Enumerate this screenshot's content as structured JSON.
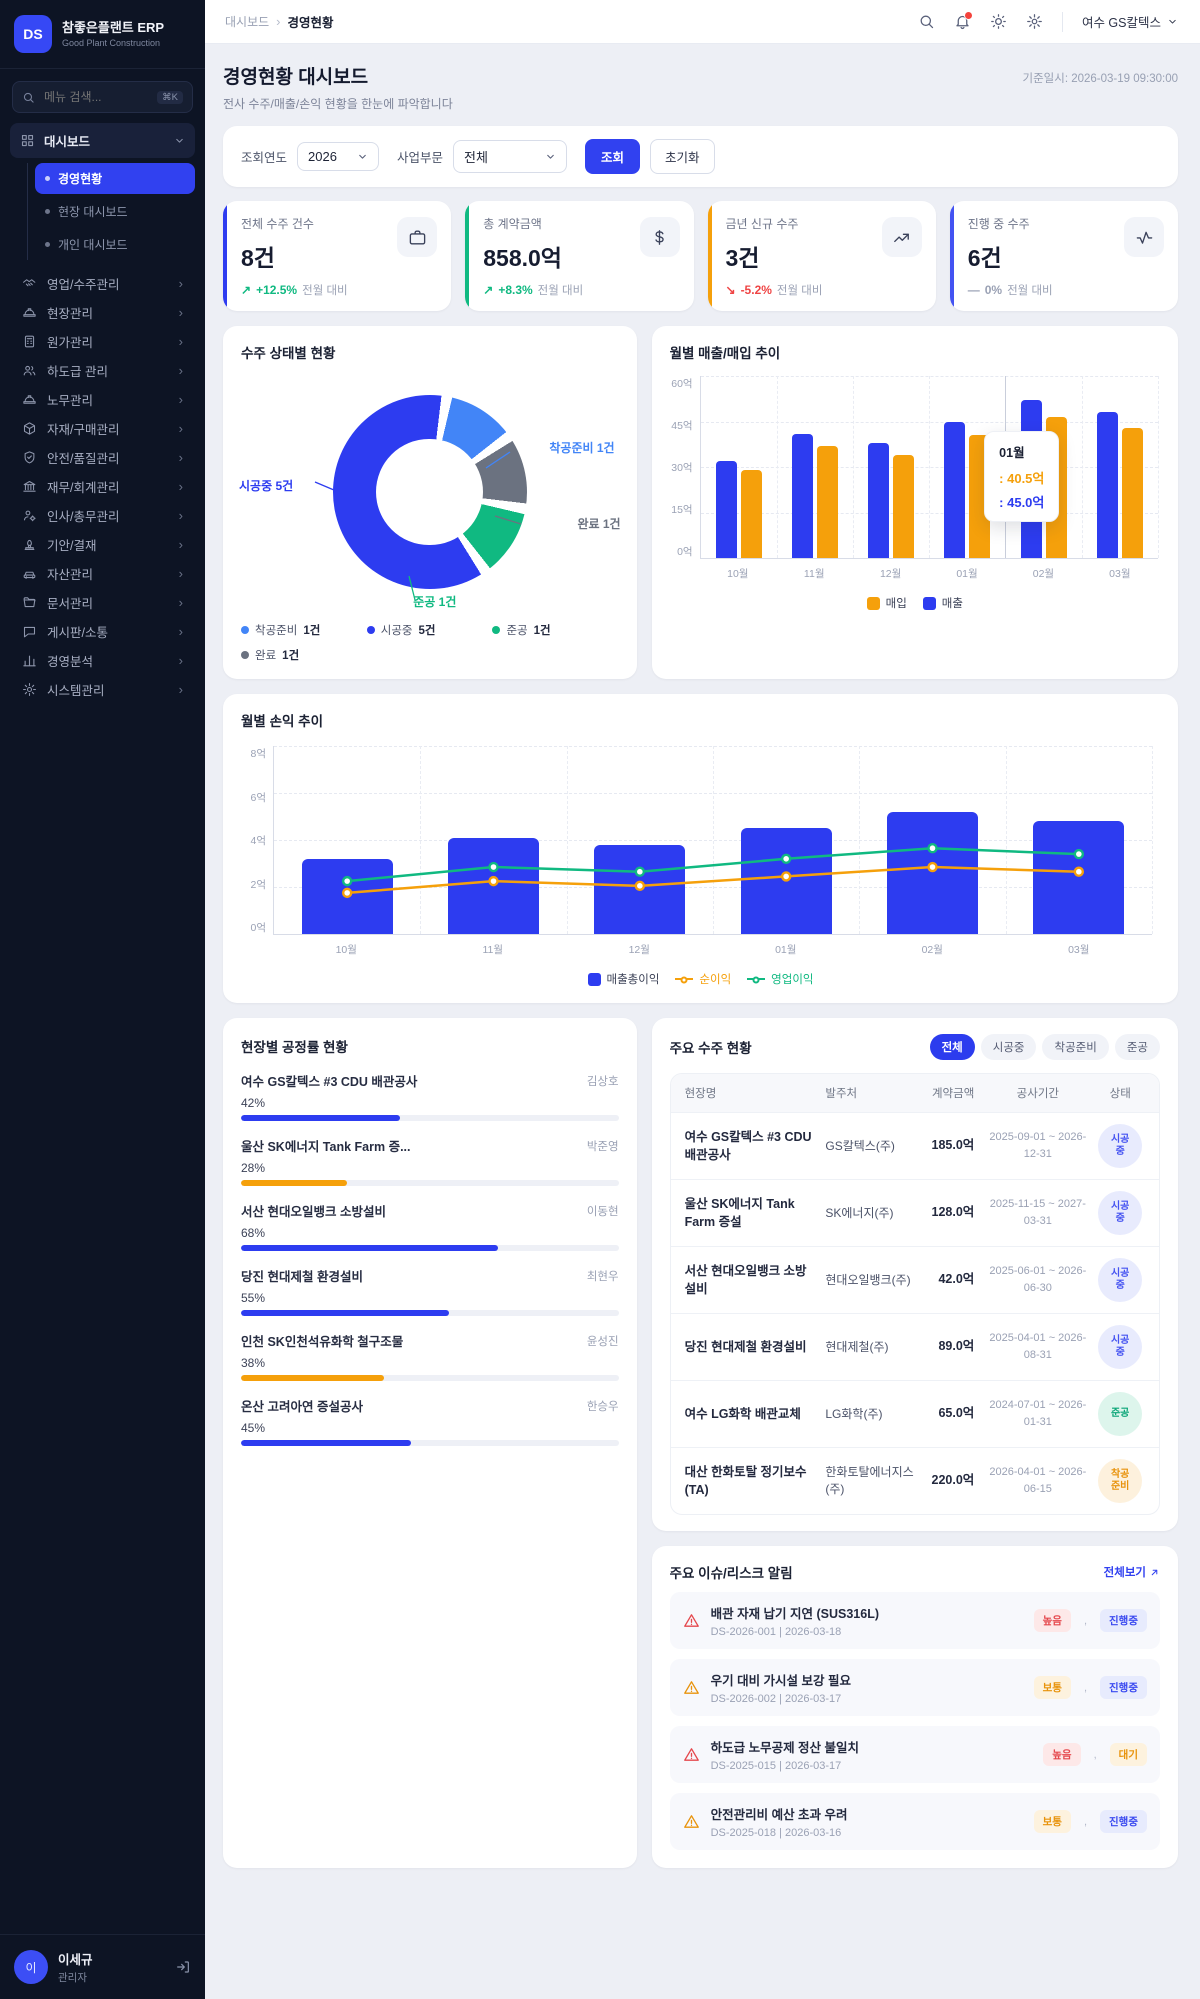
{
  "app": {
    "logo_initials": "DS",
    "title": "참좋은플랜트 ERP",
    "subtitle": "Good Plant Construction"
  },
  "sidebar": {
    "search_placeholder": "메뉴 검색...",
    "search_shortcut": "⌘K",
    "dashboard_group": {
      "label": "대시보드",
      "children": [
        {
          "label": "경영현황",
          "active": true
        },
        {
          "label": "현장 대시보드",
          "active": false
        },
        {
          "label": "개인 대시보드",
          "active": false
        }
      ]
    },
    "menu": [
      {
        "label": "영업/수주관리"
      },
      {
        "label": "현장관리"
      },
      {
        "label": "원가관리"
      },
      {
        "label": "하도급 관리"
      },
      {
        "label": "노무관리"
      },
      {
        "label": "자재/구매관리"
      },
      {
        "label": "안전/품질관리"
      },
      {
        "label": "재무/회계관리"
      },
      {
        "label": "인사/총무관리"
      },
      {
        "label": "기안/결재"
      },
      {
        "label": "자산관리"
      },
      {
        "label": "문서관리"
      },
      {
        "label": "게시판/소통"
      },
      {
        "label": "경영분석"
      },
      {
        "label": "시스템관리"
      }
    ],
    "user": {
      "initial": "이",
      "name": "이세규",
      "role": "관리자"
    }
  },
  "topbar": {
    "breadcrumb_root": "대시보드",
    "breadcrumb_current": "경영현황",
    "user_chip": "여수 GS칼텍스"
  },
  "header": {
    "title": "경영현황 대시보드",
    "subtitle": "전사 수주/매출/손익 현황을 한눈에 파악합니다",
    "timestamp": "기준일시: 2026-03-19 09:30:00"
  },
  "filters": {
    "year_label": "조회연도",
    "year_value": "2026",
    "division_label": "사업부문",
    "division_value": "전체",
    "search_button": "조회",
    "reset_button": "초기화"
  },
  "kpis": [
    {
      "label": "전체 수주 건수",
      "value": "8건",
      "delta": "+12.5%",
      "delta_note": "전월 대비",
      "trend": "up",
      "accent": "#2e3cf0"
    },
    {
      "label": "총 계약금액",
      "value": "858.0억",
      "delta": "+8.3%",
      "delta_note": "전월 대비",
      "trend": "up",
      "accent": "#10b981"
    },
    {
      "label": "금년 신규 수주",
      "value": "3건",
      "delta": "-5.2%",
      "delta_note": "전월 대비",
      "trend": "down",
      "accent": "#f5a00b"
    },
    {
      "label": "진행 중 수주",
      "value": "6건",
      "delta": "0%",
      "delta_note": "전월 대비",
      "trend": "flat",
      "accent": "#4353f2"
    }
  ],
  "chart_data": [
    {
      "id": "order_status",
      "type": "pie",
      "title": "수주 상태별 현황",
      "unit": "건",
      "labels": [
        "착공준비",
        "시공중",
        "준공",
        "완료"
      ],
      "values": [
        1,
        5,
        1,
        1
      ],
      "colors": [
        "#4285f7",
        "#2d3cf0",
        "#10b981",
        "#6b7280"
      ],
      "callouts": [
        "착공준비 1건",
        "시공중 5건",
        "준공 1건",
        "완료 1건"
      ],
      "legend": [
        {
          "label": "착공준비",
          "value": "1건",
          "color": "#4285f7"
        },
        {
          "label": "시공중",
          "value": "5건",
          "color": "#2d3cf0"
        },
        {
          "label": "준공",
          "value": "1건",
          "color": "#10b981"
        },
        {
          "label": "완료",
          "value": "1건",
          "color": "#6b7280"
        }
      ]
    },
    {
      "id": "monthly_revenue",
      "type": "bar",
      "title": "월별 매출/매입 추이",
      "categories": [
        "10월",
        "11월",
        "12월",
        "01월",
        "02월",
        "03월"
      ],
      "series": [
        {
          "name": "매출",
          "color": "#2d3cf0",
          "values": [
            32,
            41,
            38,
            45,
            52,
            48
          ]
        },
        {
          "name": "매입",
          "color": "#f5a00b",
          "values": [
            29,
            37,
            34,
            40.5,
            46.5,
            43
          ]
        }
      ],
      "ylim": [
        0,
        60
      ],
      "grid": true,
      "legend_position": "bottom",
      "ylabels": [
        "0억",
        "15억",
        "30억",
        "45억",
        "60억"
      ],
      "tooltip": {
        "title": "01월",
        "rows": [
          {
            "text": ": 40.5억",
            "color": "#f5a00b"
          },
          {
            "text": ": 45.0억",
            "color": "#2d3cf0"
          }
        ]
      }
    },
    {
      "id": "monthly_profit",
      "type": "bar",
      "title": "월별 손익 추이",
      "categories": [
        "10월",
        "11월",
        "12월",
        "01월",
        "02월",
        "03월"
      ],
      "bar_series": {
        "name": "매출총이익",
        "color": "#2d3cf0",
        "values": [
          3.2,
          4.1,
          3.8,
          4.5,
          5.2,
          4.8
        ]
      },
      "line_series": [
        {
          "name": "순이익",
          "color": "#f5a00b",
          "values": [
            1.75,
            2.25,
            2.05,
            2.45,
            2.85,
            2.65
          ]
        },
        {
          "name": "영업이익",
          "color": "#10b981",
          "values": [
            2.25,
            2.85,
            2.65,
            3.2,
            3.65,
            3.4
          ]
        }
      ],
      "ylim": [
        0,
        8
      ],
      "grid": true,
      "legend_position": "bottom",
      "ylabels": [
        "0억",
        "2억",
        "4억",
        "6억",
        "8억"
      ]
    }
  ],
  "progress": {
    "title": "현장별 공정률 현황",
    "items": [
      {
        "name": "여수 GS칼텍스 #3 CDU 배관공사",
        "manager": "김상호",
        "percent": 42,
        "percent_label": "42%",
        "color": "#2d3cf0"
      },
      {
        "name": "울산 SK에너지 Tank Farm 증...",
        "manager": "박준영",
        "percent": 28,
        "percent_label": "28%",
        "color": "#f5a00b"
      },
      {
        "name": "서산 현대오일뱅크 소방설비",
        "manager": "이동현",
        "percent": 68,
        "percent_label": "68%",
        "color": "#2d3cf0"
      },
      {
        "name": "당진 현대제철 환경설비",
        "manager": "최현우",
        "percent": 55,
        "percent_label": "55%",
        "color": "#2d3cf0"
      },
      {
        "name": "인천 SK인천석유화학 철구조물",
        "manager": "윤성진",
        "percent": 38,
        "percent_label": "38%",
        "color": "#f5a00b"
      },
      {
        "name": "온산 고려아연 증설공사",
        "manager": "한승우",
        "percent": 45,
        "percent_label": "45%",
        "color": "#2d3cf0"
      }
    ]
  },
  "orders": {
    "title": "주요 수주 현황",
    "tabs": [
      {
        "label": "전체",
        "active": true
      },
      {
        "label": "시공중",
        "active": false
      },
      {
        "label": "착공준비",
        "active": false
      },
      {
        "label": "준공",
        "active": false
      }
    ],
    "columns": [
      "현장명",
      "발주처",
      "계약금액",
      "공사기간",
      "상태"
    ],
    "rows": [
      {
        "site": "여수 GS칼텍스 #3 CDU 배관공사",
        "client": "GS칼텍스(주)",
        "amount": "185.0억",
        "period": "2025-09-01 ~ 2026-12-31",
        "status": "시공중"
      },
      {
        "site": "울산 SK에너지 Tank Farm 증설",
        "client": "SK에너지(주)",
        "amount": "128.0억",
        "period": "2025-11-15 ~ 2027-03-31",
        "status": "시공중"
      },
      {
        "site": "서산 현대오일뱅크 소방설비",
        "client": "현대오일뱅크(주)",
        "amount": "42.0억",
        "period": "2025-06-01 ~ 2026-06-30",
        "status": "시공중"
      },
      {
        "site": "당진 현대제철 환경설비",
        "client": "현대제철(주)",
        "amount": "89.0억",
        "period": "2025-04-01 ~ 2026-08-31",
        "status": "시공중"
      },
      {
        "site": "여수 LG화학 배관교체",
        "client": "LG화학(주)",
        "amount": "65.0억",
        "period": "2024-07-01 ~ 2026-01-31",
        "status": "준공"
      },
      {
        "site": "대산 한화토탈 정기보수 (TA)",
        "client": "한화토탈에너지스(주)",
        "amount": "220.0억",
        "period": "2026-04-01 ~ 2026-06-15",
        "status": "착공준비"
      }
    ]
  },
  "issues": {
    "title": "주요 이슈/리스크 알림",
    "view_all": "전체보기",
    "items": [
      {
        "title": "배관 자재 납기 지연 (SUS316L)",
        "meta": "DS-2026-001 | 2026-03-18",
        "severity": "높음",
        "status": "진행중"
      },
      {
        "title": "우기 대비 가시설 보강 필요",
        "meta": "DS-2026-002 | 2026-03-17",
        "severity": "보통",
        "status": "진행중"
      },
      {
        "title": "하도급 노무공제 정산 불일치",
        "meta": "DS-2025-015 | 2026-03-17",
        "severity": "높음",
        "status": "대기"
      },
      {
        "title": "안전관리비 예산 초과 우려",
        "meta": "DS-2025-018 | 2026-03-16",
        "severity": "보통",
        "status": "진행중"
      }
    ]
  },
  "colors": {
    "primary": "#2d3cf0",
    "orange": "#f5a00b",
    "green": "#10b981",
    "red": "#ef4444",
    "gray": "#6b7280",
    "up": "#10b981",
    "down": "#ef4444",
    "flat": "#9aa1b4"
  }
}
